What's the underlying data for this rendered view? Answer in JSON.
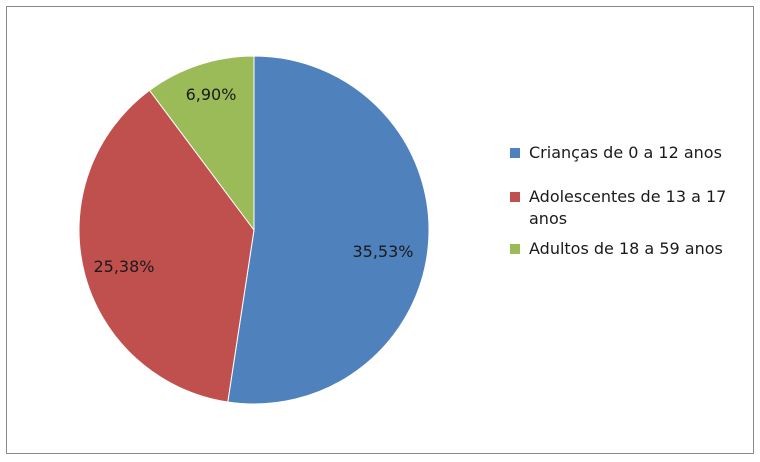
{
  "chart_data": {
    "type": "pie",
    "title": "",
    "categories": [
      "Crianças de 0 a 12 anos",
      "Adolescentes de 13 a 17 anos",
      "Adultos de 18 a 59 anos"
    ],
    "values": [
      35.53,
      25.38,
      6.9
    ],
    "labels": [
      "35,53%",
      "25,38%",
      "6,90%"
    ],
    "colors": [
      "#4F81BD",
      "#C0504D",
      "#9BBB59"
    ],
    "legend_position": "right"
  }
}
